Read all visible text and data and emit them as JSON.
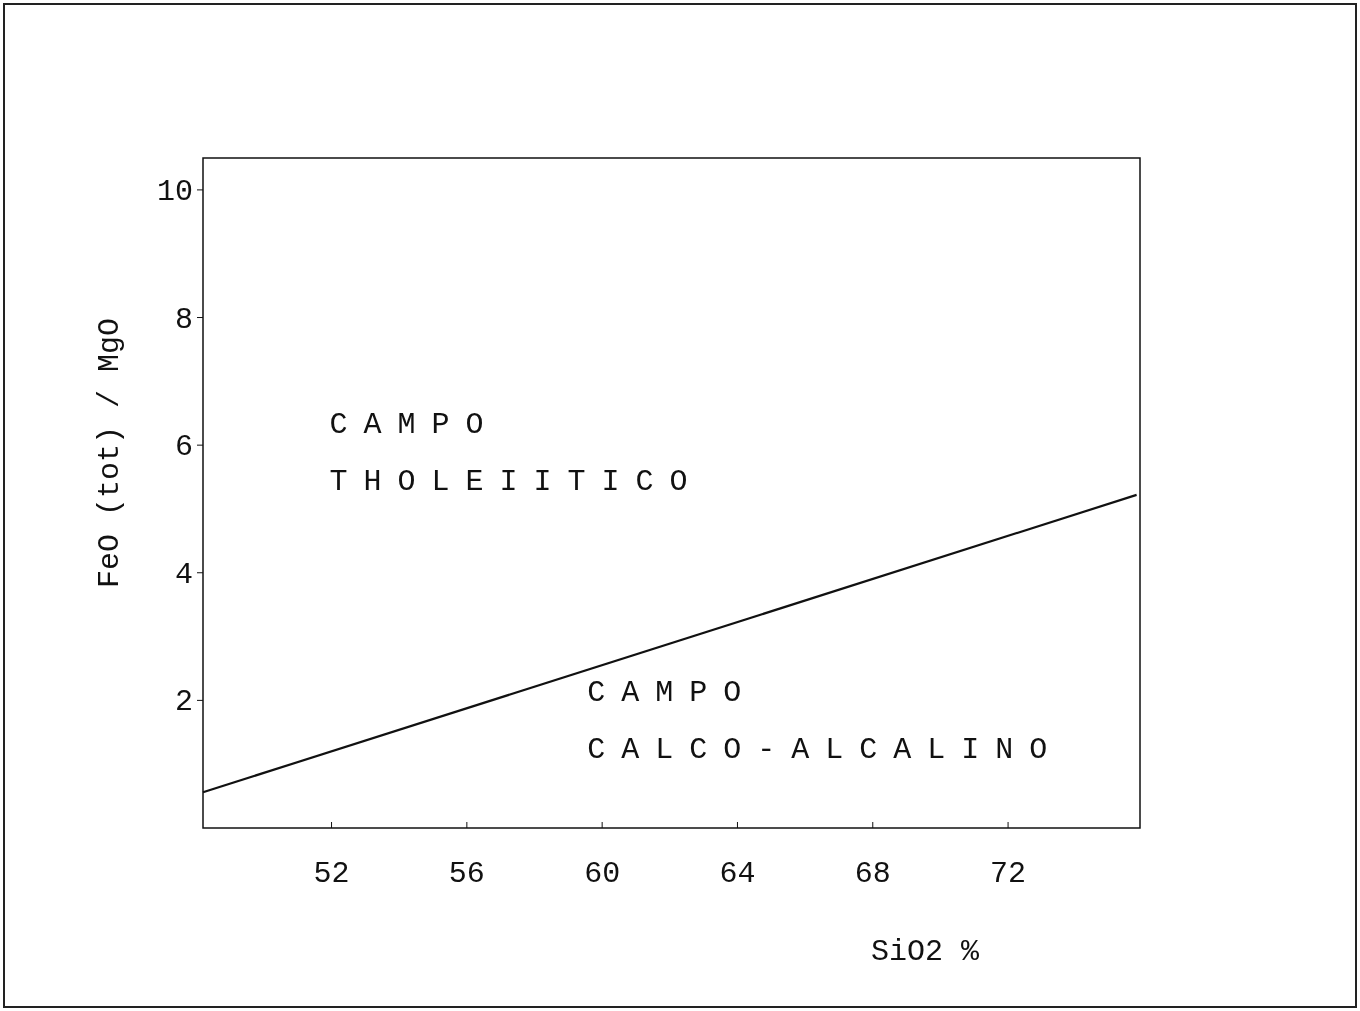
{
  "chart_data": {
    "type": "line",
    "xlabel": "SiO2 %",
    "ylabel": "FeO (tot) / MgO",
    "x": [
      48.2,
      75.8
    ],
    "series": [
      {
        "color": "#111111",
        "values": [
          0.56,
          5.22
        ]
      }
    ],
    "xlim": [
      48.2,
      75.9
    ],
    "ylim": [
      0,
      10.5
    ],
    "xticks": [
      52,
      56,
      60,
      64,
      68,
      72
    ],
    "yticks": [
      2,
      4,
      6,
      8,
      10
    ],
    "grid": false,
    "marker": "none",
    "line_style": "solid",
    "annotations": [
      "CAMPO THOLEIITICO",
      "CAMPO CALCO-ALCALINO"
    ]
  }
}
